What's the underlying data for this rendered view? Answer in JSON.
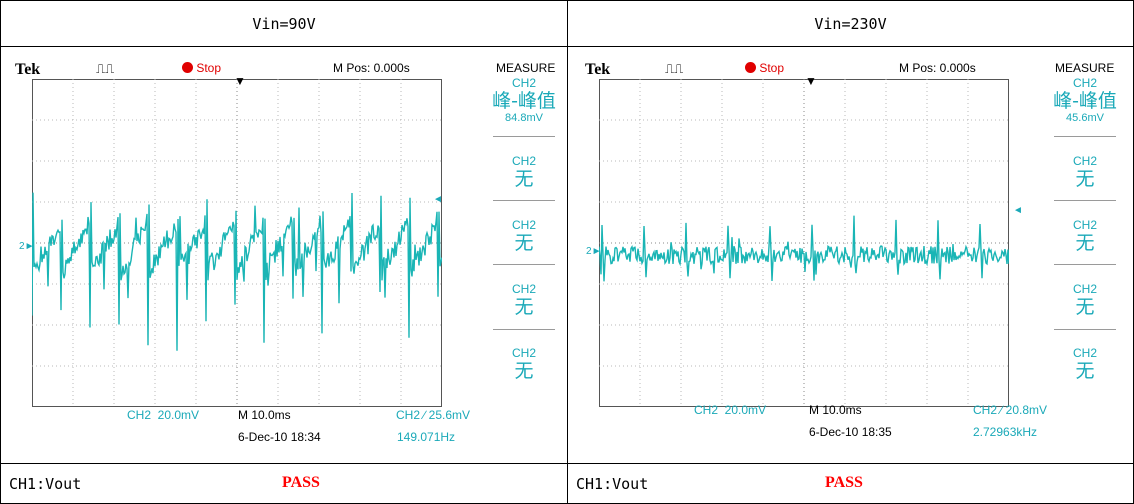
{
  "table": {
    "header_left": "Vin=90V",
    "header_right": "Vin=230V",
    "footer_left_label": "CH1:Vout",
    "footer_left_result": "PASS",
    "footer_right_label": "CH1:Vout",
    "footer_right_result": "PASS"
  },
  "scopes": [
    {
      "brand": "Tek",
      "status": "Stop",
      "mpos": "M Pos: 0.000s",
      "measure_title": "MEASURE",
      "measure": [
        {
          "ch": "CH2",
          "label": "峰-峰值",
          "value": "84.8mV"
        },
        {
          "ch": "CH2",
          "label": "无"
        },
        {
          "ch": "CH2",
          "label": "无"
        },
        {
          "ch": "CH2",
          "label": "无"
        },
        {
          "ch": "CH2",
          "label": "无"
        }
      ],
      "ch_scale": "CH2  20.0mV",
      "time_scale": "M 10.0ms",
      "trigger": "CH2 ∕ 25.6mV",
      "date": "6-Dec-10 18:34",
      "freq": "149.071Hz",
      "ch_marker": "2",
      "waveform": {
        "amplitude": "large",
        "spikes": "many"
      }
    },
    {
      "brand": "Tek",
      "status": "Stop",
      "mpos": "M Pos: 0.000s",
      "measure_title": "MEASURE",
      "measure": [
        {
          "ch": "CH2",
          "label": "峰-峰值",
          "value": "45.6mV"
        },
        {
          "ch": "CH2",
          "label": "无"
        },
        {
          "ch": "CH2",
          "label": "无"
        },
        {
          "ch": "CH2",
          "label": "无"
        },
        {
          "ch": "CH2",
          "label": "无"
        }
      ],
      "ch_scale": "CH2  20.0mV",
      "time_scale": "M 10.0ms",
      "trigger": "CH2 ∕ 20.8mV",
      "date": "6-Dec-10 18:35",
      "freq": "2.72963kHz",
      "ch_marker": "2",
      "waveform": {
        "amplitude": "small",
        "spikes": "few"
      }
    }
  ],
  "colors": {
    "trace": "#1ab5b5",
    "text_cyan": "#1aa9b8",
    "status_red": "#e00000",
    "pass_red": "#ff0000"
  }
}
